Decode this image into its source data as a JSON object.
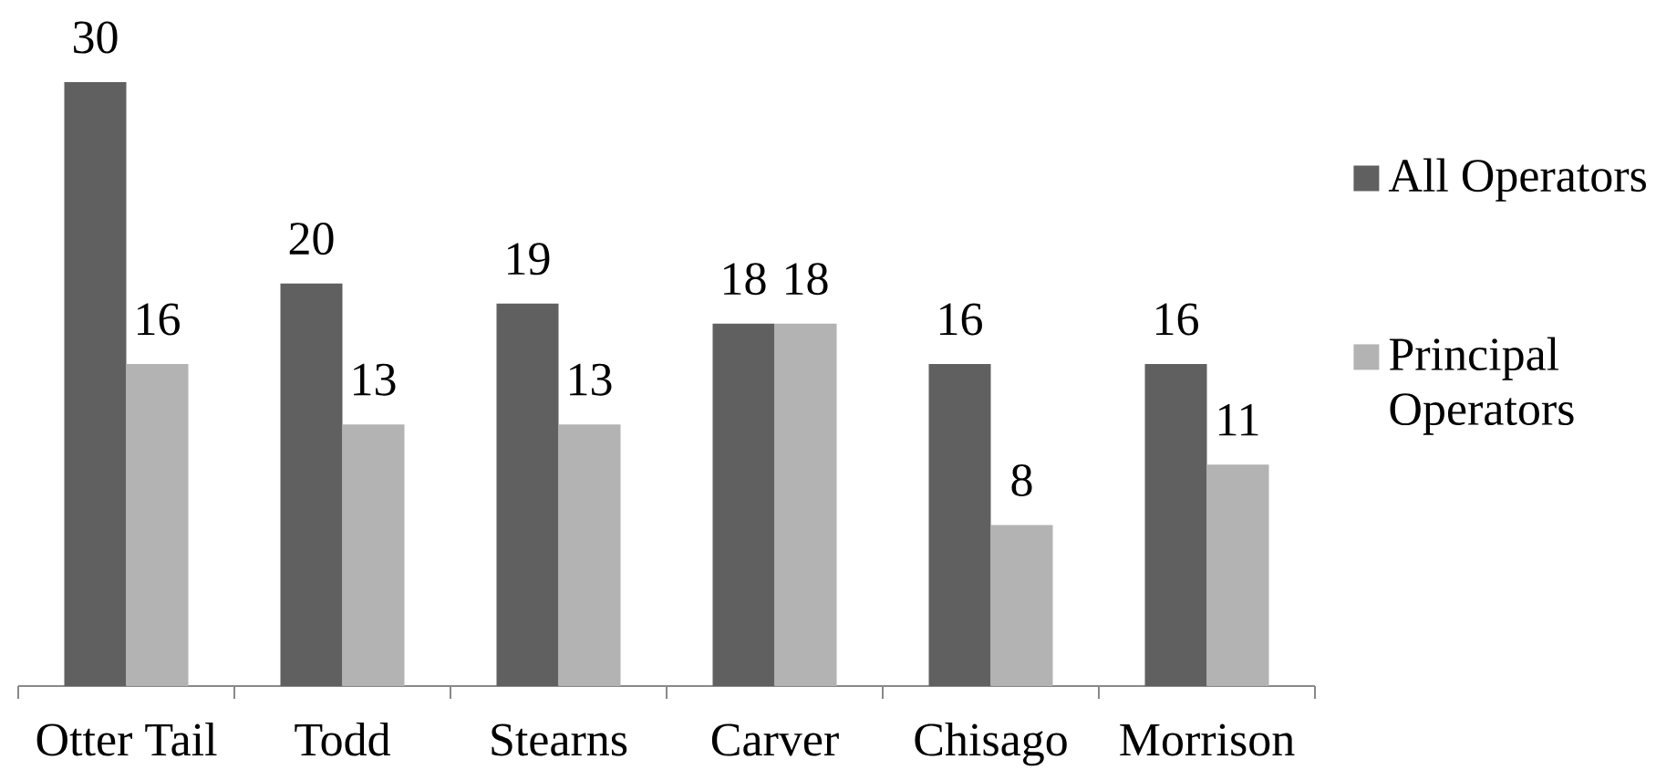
{
  "chart_data": {
    "type": "bar",
    "categories": [
      "Otter Tail",
      "Todd",
      "Stearns",
      "Carver",
      "Chisago",
      "Morrison"
    ],
    "series": [
      {
        "name": "All Operators",
        "color": "#606060",
        "values": [
          30,
          20,
          19,
          18,
          16,
          16
        ]
      },
      {
        "name": "Principal Operators",
        "color": "#b3b3b3",
        "values": [
          16,
          13,
          13,
          18,
          8,
          11
        ]
      }
    ],
    "data_labels": true,
    "legend": "right",
    "tick_labels": "x"
  }
}
